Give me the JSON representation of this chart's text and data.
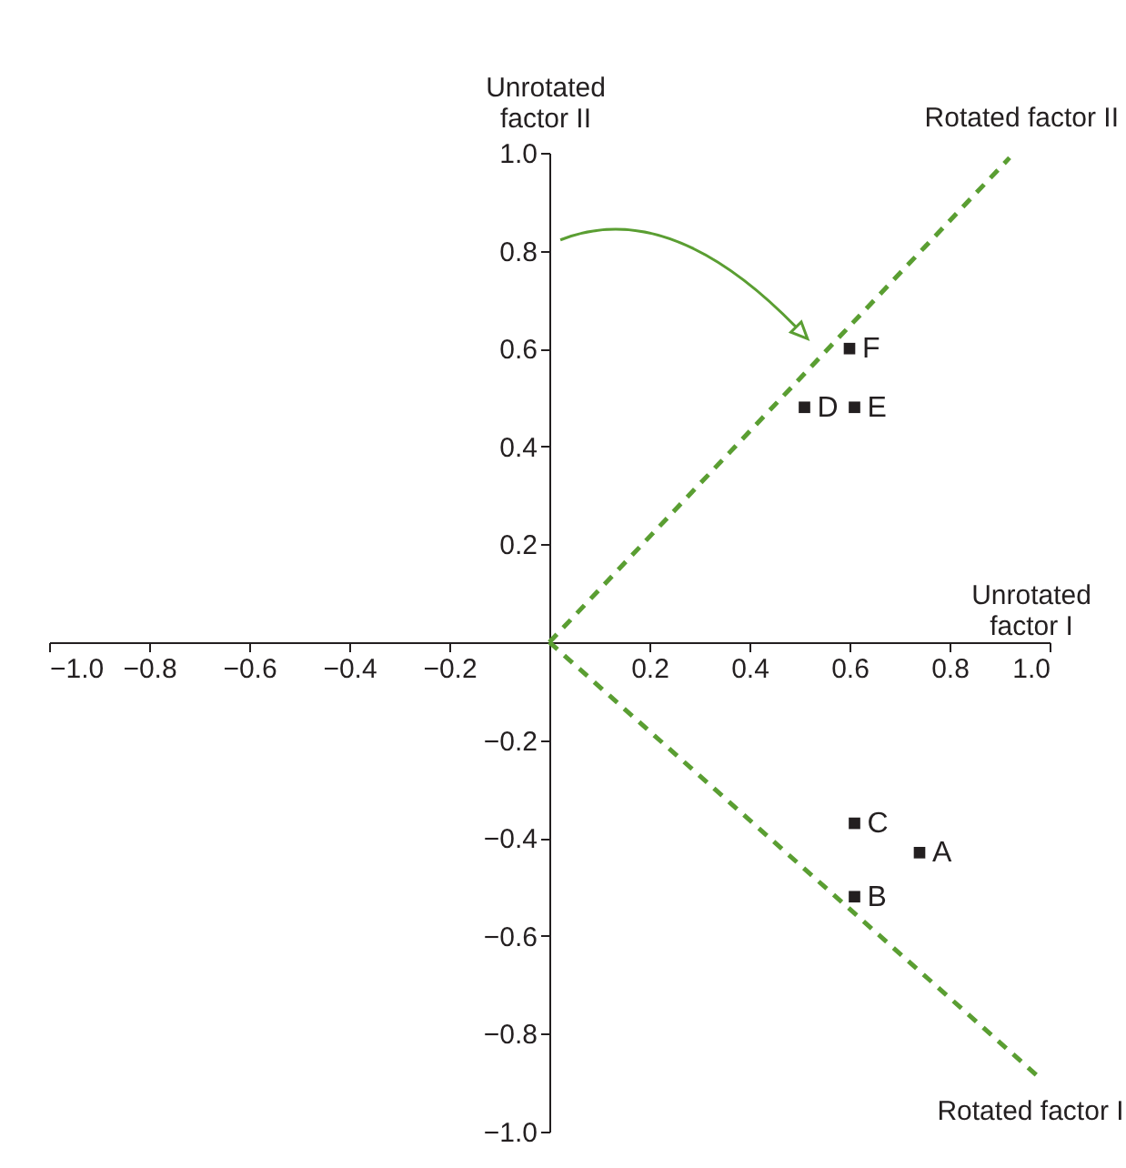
{
  "chart_data": {
    "type": "scatter",
    "xlabel": "Unrotated\nfactor I",
    "ylabel": "Unrotated\nfactor II",
    "xlim": [
      -1,
      1
    ],
    "ylim": [
      -1,
      1
    ],
    "xticks": [
      {
        "value": -1,
        "label": "−1.0"
      },
      {
        "value": -0.8,
        "label": "−0.8"
      },
      {
        "value": -0.6,
        "label": "−0.6"
      },
      {
        "value": -0.4,
        "label": "−0.4"
      },
      {
        "value": -0.2,
        "label": "−0.2"
      },
      0.2,
      0.4,
      0.6,
      0.8,
      {
        "value": 1,
        "label": "1.0"
      }
    ],
    "yticks": [
      {
        "value": -1,
        "label": "−1.0"
      },
      {
        "value": -0.8,
        "label": "−0.8"
      },
      {
        "value": -0.6,
        "label": "−0.6"
      },
      {
        "value": -0.4,
        "label": "−0.4"
      },
      {
        "value": -0.2,
        "label": "−0.2"
      },
      0.2,
      0.4,
      0.6,
      0.8,
      {
        "value": 1,
        "label": "1.0"
      }
    ],
    "grid": false,
    "series": [
      {
        "marker": "square",
        "color": "#231f20",
        "x": [
          0.74,
          0.61,
          0.61,
          0.51,
          0.61,
          0.6
        ],
        "values": [
          -0.43,
          -0.52,
          -0.37,
          0.48,
          0.48,
          0.6
        ]
      },
      {
        "name": "Rotated factor I",
        "type": "line",
        "line_style": "dashed",
        "color": "#5a9e32",
        "x": [
          0,
          0.98
        ],
        "values": [
          0,
          -0.89
        ]
      },
      {
        "name": "Rotated factor II",
        "type": "line",
        "line_style": "dashed",
        "color": "#5a9e32",
        "x": [
          0,
          0.92
        ],
        "values": [
          0,
          0.99
        ]
      }
    ],
    "annotations": [
      {
        "text": "A",
        "x": 0.74,
        "y": -0.43
      },
      {
        "text": "B",
        "x": 0.61,
        "y": -0.52
      },
      {
        "text": "C",
        "x": 0.61,
        "y": -0.37
      },
      {
        "text": "D",
        "x": 0.51,
        "y": 0.48
      },
      {
        "text": "E",
        "x": 0.61,
        "y": 0.48
      },
      {
        "text": "F",
        "x": 0.6,
        "y": 0.6
      }
    ]
  }
}
